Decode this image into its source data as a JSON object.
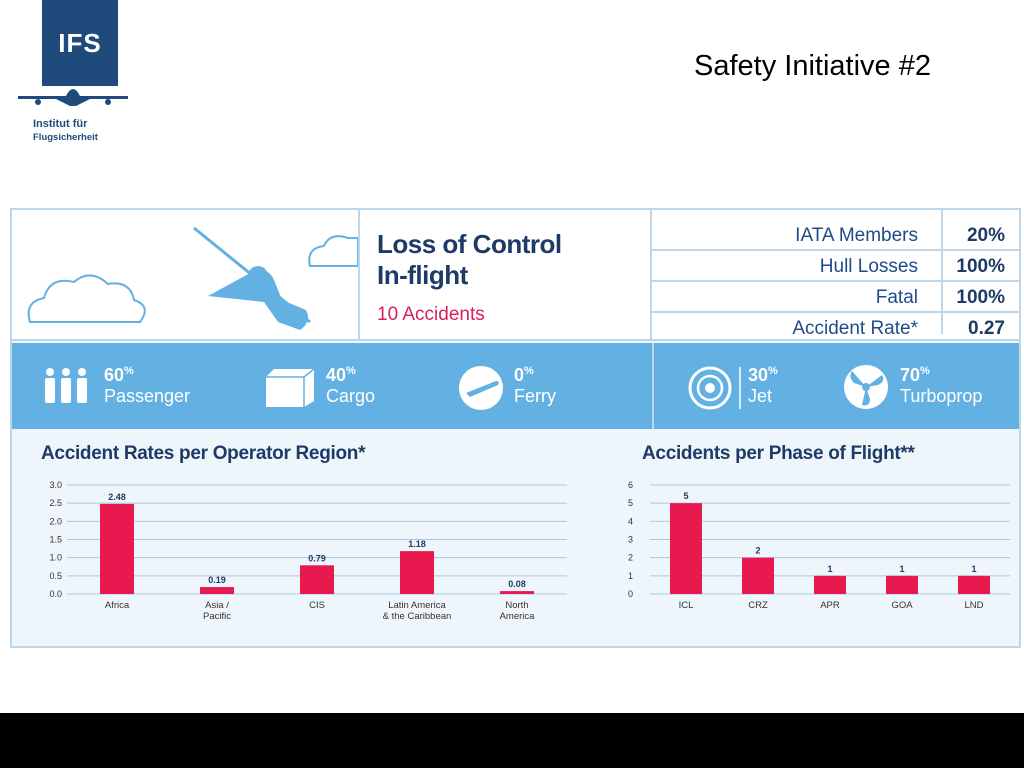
{
  "logo": {
    "letters": "IFS",
    "name_line1": "Institut für",
    "name_line2": "Flugsicherheit"
  },
  "slide_title": "Safety Initiative #2",
  "header": {
    "title_line1": "Loss of Control",
    "title_line2": "In-flight",
    "accidents": "10 Accidents"
  },
  "stats": [
    {
      "label": "IATA Members",
      "value": "20%"
    },
    {
      "label": "Hull Losses",
      "value": "100%"
    },
    {
      "label": "Fatal",
      "value": "100%"
    },
    {
      "label": "Accident Rate*",
      "value": "0.27"
    }
  ],
  "operations": [
    {
      "icon": "passenger-icon",
      "value": "60",
      "unit": "%",
      "label": "Passenger"
    },
    {
      "icon": "cargo-icon",
      "value": "40",
      "unit": "%",
      "label": "Cargo"
    },
    {
      "icon": "ferry-icon",
      "value": "0",
      "unit": "%",
      "label": "Ferry"
    }
  ],
  "propulsion": [
    {
      "icon": "jet-icon",
      "value": "30",
      "unit": "%",
      "label": "Jet"
    },
    {
      "icon": "turboprop-icon",
      "value": "70",
      "unit": "%",
      "label": "Turboprop"
    }
  ],
  "colors": {
    "bar": "#e8194f",
    "band": "#63b1e2",
    "navy": "#1e3a66",
    "accent": "#d8215c"
  },
  "chart_data": [
    {
      "type": "bar",
      "title": "Accident Rates per Operator Region*",
      "categories": [
        "Africa",
        "Asia / Pacific",
        "CIS",
        "Latin America & the Caribbean",
        "North America"
      ],
      "category_lines": [
        [
          "Africa"
        ],
        [
          "Asia /",
          "Pacific"
        ],
        [
          "CIS"
        ],
        [
          "Latin America",
          "& the Caribbean"
        ],
        [
          "North",
          "America"
        ]
      ],
      "values": [
        2.48,
        0.19,
        0.79,
        1.18,
        0.08
      ],
      "value_labels": [
        "2.48",
        "0.19",
        "0.79",
        "1.18",
        "0.08"
      ],
      "yticks": [
        "0.0",
        "0.5",
        "1.0",
        "1.5",
        "2.0",
        "2.5",
        "3.0"
      ],
      "ylim": [
        0,
        3
      ],
      "grid": true
    },
    {
      "type": "bar",
      "title": "Accidents per Phase of Flight**",
      "categories": [
        "ICL",
        "CRZ",
        "APR",
        "GOA",
        "LND"
      ],
      "category_lines": [
        [
          "ICL"
        ],
        [
          "CRZ"
        ],
        [
          "APR"
        ],
        [
          "GOA"
        ],
        [
          "LND"
        ]
      ],
      "values": [
        5,
        2,
        1,
        1,
        1
      ],
      "value_labels": [
        "5",
        "2",
        "1",
        "1",
        "1"
      ],
      "yticks": [
        "0",
        "1",
        "2",
        "3",
        "4",
        "5",
        "6"
      ],
      "ylim": [
        0,
        6
      ],
      "grid": true
    }
  ]
}
